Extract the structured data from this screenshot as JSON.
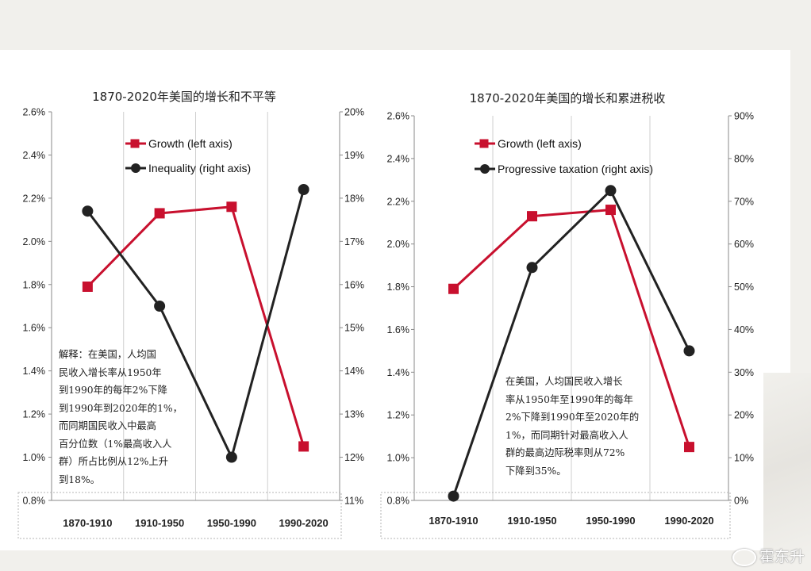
{
  "chart_data": [
    {
      "type": "line",
      "title": "1870-2020年美国的增长和不平等",
      "categories": [
        "1870-1910",
        "1910-1950",
        "1950-1990",
        "1990-2020"
      ],
      "left_axis": {
        "ylim": [
          0.8,
          2.6
        ],
        "ticks": [
          "0.8%",
          "1.0%",
          "1.2%",
          "1.4%",
          "1.6%",
          "1.8%",
          "2.0%",
          "2.2%",
          "2.4%",
          "2.6%"
        ]
      },
      "right_axis": {
        "ylim": [
          11,
          20
        ],
        "ticks": [
          "11%",
          "12%",
          "13%",
          "14%",
          "15%",
          "16%",
          "17%",
          "18%",
          "19%",
          "20%"
        ]
      },
      "series": [
        {
          "name": "Growth (left axis)",
          "axis": "left",
          "color": "#c8102e",
          "marker": "square",
          "values": [
            1.79,
            2.13,
            2.16,
            1.05
          ]
        },
        {
          "name": "Inequality (right axis)",
          "axis": "right",
          "color": "#222222",
          "marker": "circle",
          "values": [
            17.7,
            15.5,
            12.0,
            18.2
          ]
        }
      ],
      "legend": "top-left",
      "annotation": [
        "解释：在美国，人均国",
        "民收入增长率从1950年",
        "到1990年的每年2%下降",
        "到1990年到2020年的1%，",
        "而同期国民收入中最高",
        "百分位数（1%最高收入人",
        "群）所占比例从12%上升",
        "到18%。"
      ]
    },
    {
      "type": "line",
      "title": "1870-2020年美国的增长和累进税收",
      "categories": [
        "1870-1910",
        "1910-1950",
        "1950-1990",
        "1990-2020"
      ],
      "left_axis": {
        "ylim": [
          0.8,
          2.6
        ],
        "ticks": [
          "0.8%",
          "1.0%",
          "1.2%",
          "1.4%",
          "1.6%",
          "1.8%",
          "2.0%",
          "2.2%",
          "2.4%",
          "2.6%"
        ]
      },
      "right_axis": {
        "ylim": [
          0,
          90
        ],
        "ticks": [
          "0%",
          "10%",
          "20%",
          "30%",
          "40%",
          "50%",
          "60%",
          "70%",
          "80%",
          "90%"
        ]
      },
      "series": [
        {
          "name": "Growth (left axis)",
          "axis": "left",
          "color": "#c8102e",
          "marker": "square",
          "values": [
            1.79,
            2.13,
            2.16,
            1.05
          ]
        },
        {
          "name": "Progressive taxation (right axis)",
          "axis": "right",
          "color": "#222222",
          "marker": "circle",
          "values": [
            1,
            54.5,
            72.5,
            35
          ]
        }
      ],
      "legend": "top-left",
      "annotation": [
        "在美国，人均国民收入增长",
        "率从1950年至1990年的每年",
        "2%下降到1990年至2020年的",
        "1%，而同期针对最高收入人",
        "群的最高边际税率则从72%",
        "下降到35%。"
      ]
    }
  ],
  "watermark": "霍东升"
}
